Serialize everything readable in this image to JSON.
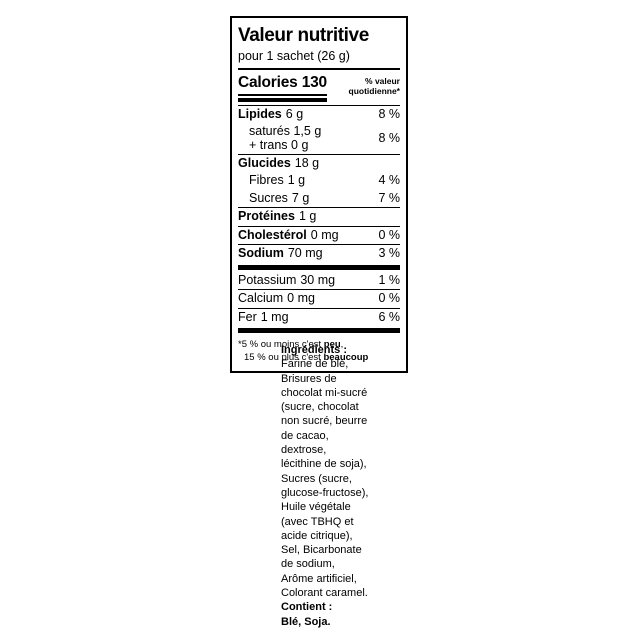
{
  "colors": {
    "ink": "#000000",
    "background": "#ffffff"
  },
  "nutrition": {
    "title": "Valeur nutritive",
    "serving": "pour 1 sachet (26 g)",
    "calories_label": "Calories",
    "calories_value": "130",
    "daily_value_header_line1": "% valeur",
    "daily_value_header_line2": "quotidienne*",
    "rows": [
      {
        "label": "Lipides",
        "value": "6 g",
        "pct": "8 %"
      },
      {
        "label": "Glucides",
        "value": "18 g",
        "pct": ""
      },
      {
        "label": "Fibres",
        "value": "1 g",
        "pct": "4 %"
      },
      {
        "label": "Sucres",
        "value": "7 g",
        "pct": "7 %"
      },
      {
        "label": "Protéines",
        "value": "1 g",
        "pct": ""
      },
      {
        "label": "Cholestérol",
        "value": "0 mg",
        "pct": "0 %"
      },
      {
        "label": "Sodium",
        "value": "70 mg",
        "pct": "3 %"
      },
      {
        "label": "Potassium",
        "value": "30 mg",
        "pct": "1 %"
      },
      {
        "label": "Calcium",
        "value": "0 mg",
        "pct": "0 %"
      },
      {
        "label": "Fer",
        "value": "1 mg",
        "pct": "6 %"
      }
    ],
    "saturated": {
      "line1": "saturés 1,5 g",
      "line2": "+ trans 0 g",
      "pct": "8 %"
    },
    "footnote": {
      "line1_pre": "*5 % ou moins c'est ",
      "line1_bold": "peu",
      "line1_post": ",",
      "line2_pre": "15 % ou plus c'est ",
      "line2_bold": "beaucoup"
    }
  },
  "ingredients": {
    "heading": "Ingrédients :",
    "lines": [
      "Farine de blé,",
      "Brisures de",
      "chocolat mi-sucré",
      "(sucre, chocolat",
      "non sucré, beurre",
      "de cacao,",
      "dextrose,",
      "lécithine de soja),",
      "Sucres (sucre,",
      "glucose-fructose),",
      "Huile végétale",
      "(avec TBHQ et",
      "acide citrique),",
      "Sel, Bicarbonate",
      "de sodium,",
      "Arôme artificiel,",
      "Colorant caramel."
    ],
    "contains_label": "Contient :",
    "contains_value": "Blé, Soja."
  }
}
